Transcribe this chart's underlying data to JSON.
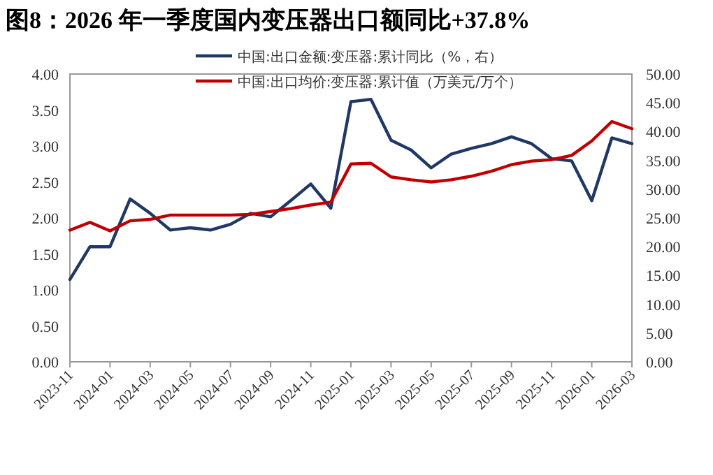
{
  "chart_data": {
    "type": "line",
    "title": "图8：2026 年一季度国内变压器出口额同比+37.8%",
    "categories": [
      "2023-11",
      null,
      "2024-01",
      null,
      "2024-03",
      null,
      "2024-05",
      null,
      "2024-07",
      null,
      "2024-09",
      null,
      "2024-11",
      null,
      "2025-01",
      null,
      "2025-03",
      null,
      "2025-05",
      null,
      "2025-07",
      null,
      "2025-09",
      null,
      "2025-11",
      null,
      "2026-01",
      null,
      "2026-03"
    ],
    "series": [
      {
        "name": "中国:出口金额:变压器:累计同比（%，右）",
        "color": "#1f3864",
        "axis": "y2",
        "values": [
          14.3,
          20.0,
          20.0,
          28.3,
          25.8,
          22.9,
          23.3,
          22.9,
          23.9,
          25.8,
          25.2,
          28.0,
          30.9,
          26.7,
          45.2,
          45.6,
          38.5,
          36.8,
          33.7,
          36.1,
          37.1,
          37.9,
          39.1,
          37.9,
          35.3,
          34.9,
          28.0,
          38.9,
          37.9
        ]
      },
      {
        "name": "中国:出口均价:变压器:累计值（万美元/万个）",
        "color": "#c00000",
        "values": [
          1.83,
          1.94,
          1.82,
          1.96,
          1.98,
          2.04,
          2.04,
          2.04,
          2.04,
          2.05,
          2.09,
          2.13,
          2.18,
          2.22,
          2.75,
          2.76,
          2.57,
          2.53,
          2.5,
          2.53,
          2.58,
          2.65,
          2.74,
          2.79,
          2.81,
          2.87,
          3.07,
          3.34,
          3.24
        ]
      }
    ],
    "ylim": [
      0,
      4
    ],
    "yticks": [
      {
        "value": 0,
        "label": "0.00"
      },
      {
        "value": 0.5,
        "label": "0.50"
      },
      {
        "value": 1,
        "label": "1.00"
      },
      {
        "value": 1.5,
        "label": "1.50"
      },
      {
        "value": 2,
        "label": "2.00"
      },
      {
        "value": 2.5,
        "label": "2.50"
      },
      {
        "value": 3,
        "label": "3.00"
      },
      {
        "value": 3.5,
        "label": "3.50"
      },
      {
        "value": 4,
        "label": "4.00"
      }
    ],
    "y2lim": [
      0,
      50
    ],
    "y2ticks": [
      {
        "value": 0,
        "label": "0.00"
      },
      {
        "value": 5,
        "label": "5.00"
      },
      {
        "value": 10,
        "label": "10.00"
      },
      {
        "value": 15,
        "label": "15.00"
      },
      {
        "value": 20,
        "label": "20.00"
      },
      {
        "value": 25,
        "label": "25.00"
      },
      {
        "value": 30,
        "label": "30.00"
      },
      {
        "value": 35,
        "label": "35.00"
      },
      {
        "value": 40,
        "label": "40.00"
      },
      {
        "value": 45,
        "label": "45.00"
      },
      {
        "value": 50,
        "label": "50.00"
      }
    ],
    "legend": "top",
    "grid": false,
    "marker": "none",
    "line_style": "solid"
  }
}
